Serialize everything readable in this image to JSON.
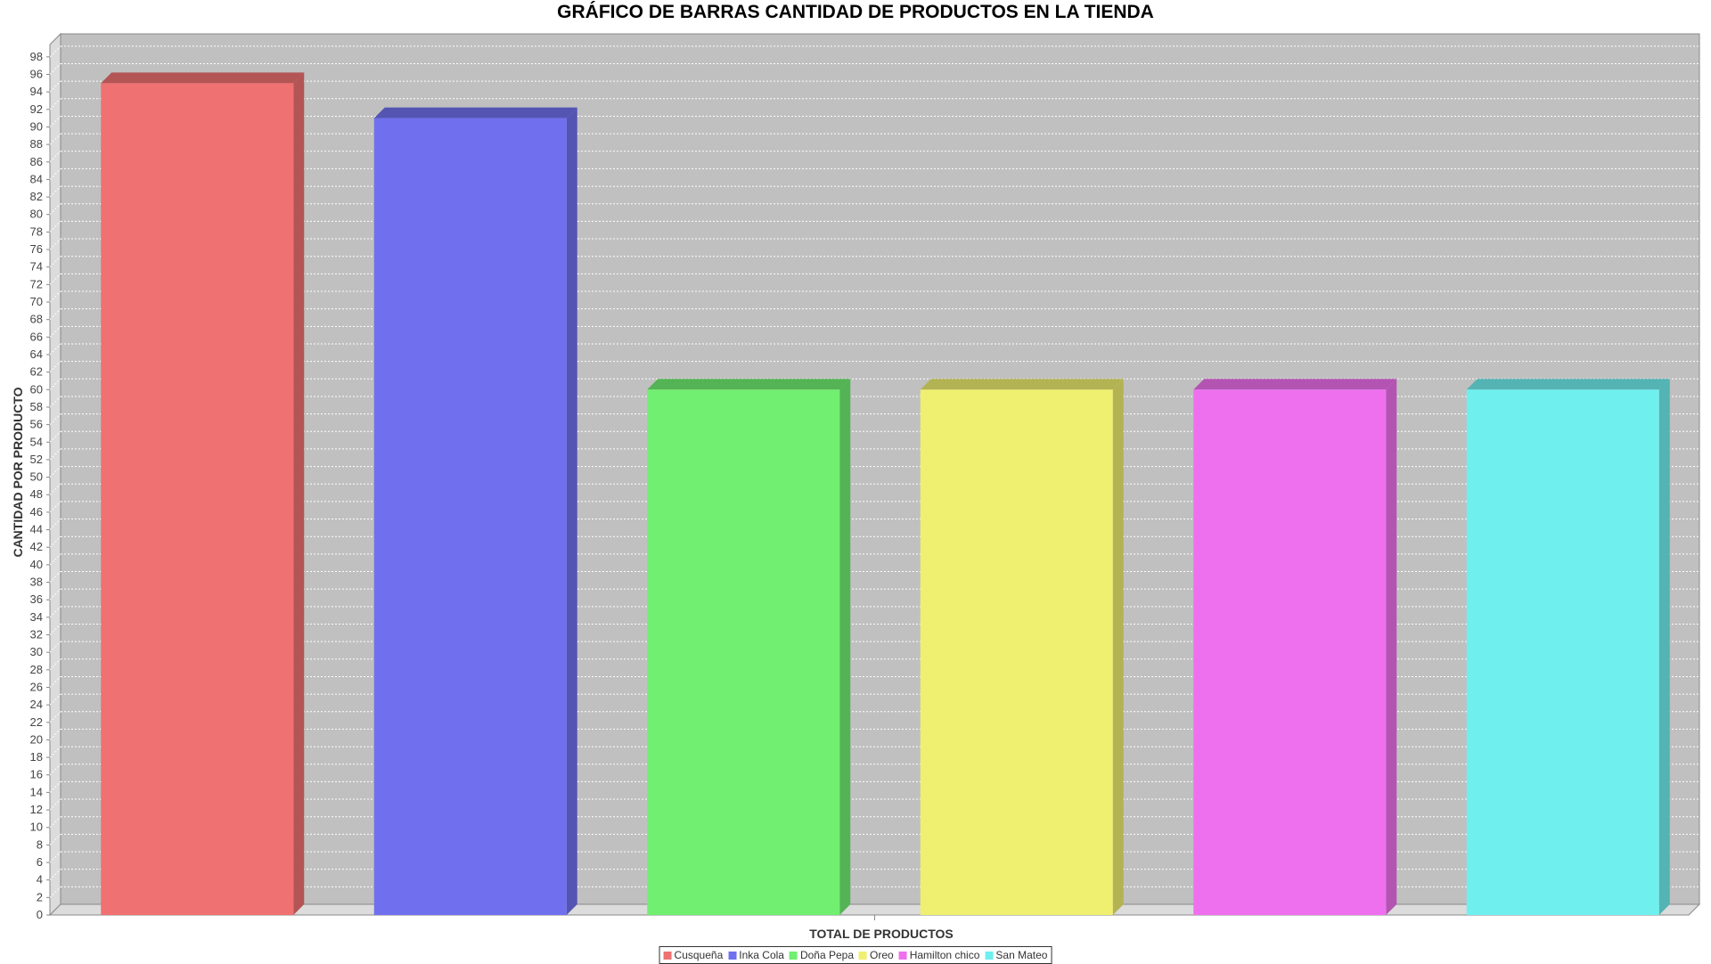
{
  "chart_data": {
    "type": "bar",
    "title": "GRÁFICO DE BARRAS CANTIDAD DE PRODUCTOS EN LA TIENDA",
    "xlabel": "TOTAL DE PRODUCTOS",
    "ylabel": "CANTIDAD POR PRODUCTO",
    "ylim": [
      0,
      99
    ],
    "ytick_step": 2,
    "grid": true,
    "legend_position": "bottom-center",
    "series": [
      {
        "name": "Cusqueña",
        "values": [
          95
        ],
        "color": "#ef7171"
      },
      {
        "name": "Inka Cola",
        "values": [
          91
        ],
        "color": "#7070ef"
      },
      {
        "name": "Doña Pepa",
        "values": [
          60
        ],
        "color": "#70ef70"
      },
      {
        "name": "Oreo",
        "values": [
          60
        ],
        "color": "#efef70"
      },
      {
        "name": "Hamilton chico",
        "values": [
          60
        ],
        "color": "#ef70ef"
      },
      {
        "name": "San Mateo",
        "values": [
          60
        ],
        "color": "#70efef"
      }
    ]
  }
}
